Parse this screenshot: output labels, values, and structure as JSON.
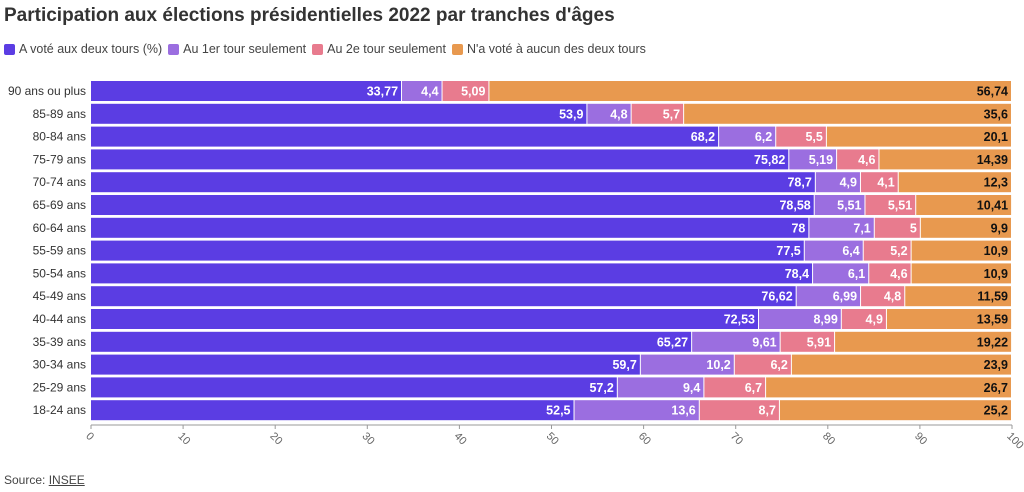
{
  "title": "Participation aux élections présidentielles 2022 par tranches d'âges",
  "source": {
    "label": "Source:",
    "link_text": "INSEE"
  },
  "chart_data": {
    "type": "bar",
    "orientation": "horizontal",
    "stacked": true,
    "title": "Participation aux élections présidentielles 2022 par tranches d'âges",
    "xlabel": "",
    "ylabel": "",
    "xlim": [
      0,
      100
    ],
    "x_ticks": [
      "0",
      "10",
      "20",
      "30",
      "40",
      "50",
      "60",
      "70",
      "80",
      "90",
      "100"
    ],
    "grid": false,
    "legend_position": "top-left",
    "categories": [
      "90 ans ou plus",
      "85-89 ans",
      "80-84 ans",
      "75-79 ans",
      "70-74 ans",
      "65-69 ans",
      "60-64 ans",
      "55-59 ans",
      "50-54 ans",
      "45-49 ans",
      "40-44 ans",
      "35-39 ans",
      "30-34 ans",
      "25-29 ans",
      "18-24 ans"
    ],
    "series": [
      {
        "name": "A voté aux deux tours (%)",
        "color": "#5b3de3",
        "values": [
          33.77,
          53.9,
          68.2,
          75.82,
          78.7,
          78.58,
          78,
          77.5,
          78.4,
          76.62,
          72.53,
          65.27,
          59.7,
          57.2,
          52.5
        ],
        "labels": [
          "33,77",
          "53,9",
          "68,2",
          "75,82",
          "78,7",
          "78,58",
          "78",
          "77,5",
          "78,4",
          "76,62",
          "72,53",
          "65,27",
          "59,7",
          "57,2",
          "52,5"
        ]
      },
      {
        "name": "Au 1er tour seulement",
        "color": "#9b6ee0",
        "values": [
          4.4,
          4.8,
          6.2,
          5.19,
          4.9,
          5.51,
          7.1,
          6.4,
          6.1,
          6.99,
          8.99,
          9.61,
          10.2,
          9.4,
          13.6
        ],
        "labels": [
          "4,4",
          "4,8",
          "6,2",
          "5,19",
          "4,9",
          "5,51",
          "7,1",
          "6,4",
          "6,1",
          "6,99",
          "8,99",
          "9,61",
          "10,2",
          "9,4",
          "13,6"
        ]
      },
      {
        "name": "Au 2e tour seulement",
        "color": "#e87b8e",
        "values": [
          5.09,
          5.7,
          5.5,
          4.6,
          4.1,
          5.51,
          5,
          5.2,
          4.6,
          4.8,
          4.9,
          5.91,
          6.2,
          6.7,
          8.7
        ],
        "labels": [
          "5,09",
          "5,7",
          "5,5",
          "4,6",
          "4,1",
          "5,51",
          "5",
          "5,2",
          "4,6",
          "4,8",
          "4,9",
          "5,91",
          "6,2",
          "6,7",
          "8,7"
        ]
      },
      {
        "name": "N'a voté à aucun des deux tours",
        "color": "#e8994f",
        "values": [
          56.74,
          35.6,
          20.1,
          14.39,
          12.3,
          10.41,
          9.9,
          10.9,
          10.9,
          11.59,
          13.59,
          19.22,
          23.9,
          26.7,
          25.2
        ],
        "labels": [
          "56,74",
          "35,6",
          "20,1",
          "14,39",
          "12,3",
          "10,41",
          "9,9",
          "10,9",
          "10,9",
          "11,59",
          "13,59",
          "19,22",
          "23,9",
          "26,7",
          "25,2"
        ]
      }
    ]
  }
}
